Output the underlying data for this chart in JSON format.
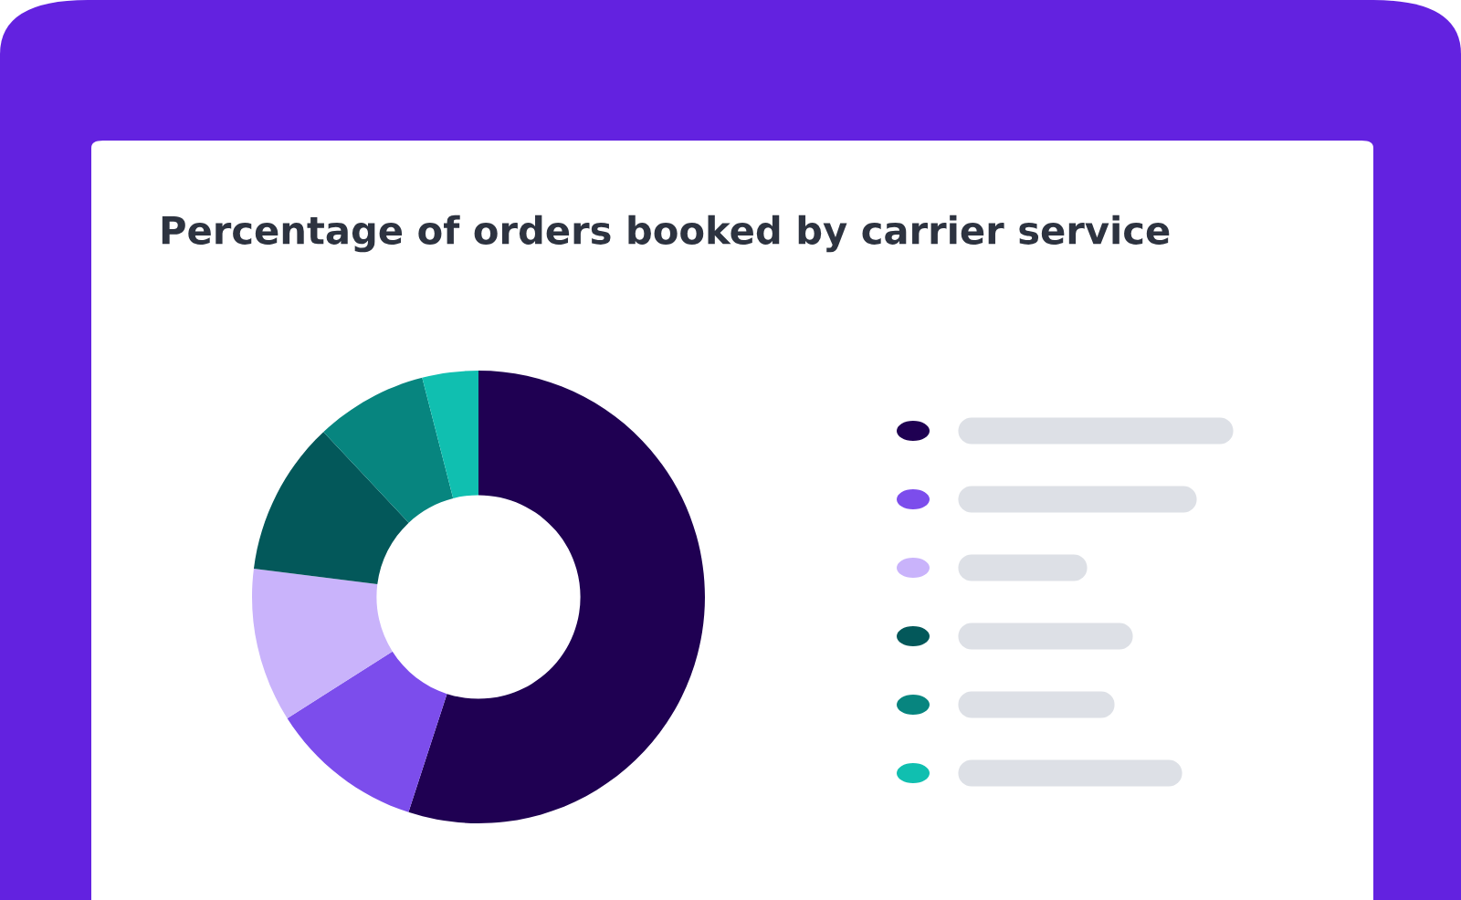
{
  "chart_data": {
    "type": "donut",
    "title": "Percentage of orders booked by carrier service",
    "categories": [
      null,
      null,
      null,
      null,
      null,
      null
    ],
    "values": [
      55,
      11,
      11,
      11,
      8,
      4
    ],
    "colors": [
      "#1f0052",
      "#7c4dec",
      "#c9b3fb",
      "#03585a",
      "#07857f",
      "#10bfb0"
    ]
  }
}
